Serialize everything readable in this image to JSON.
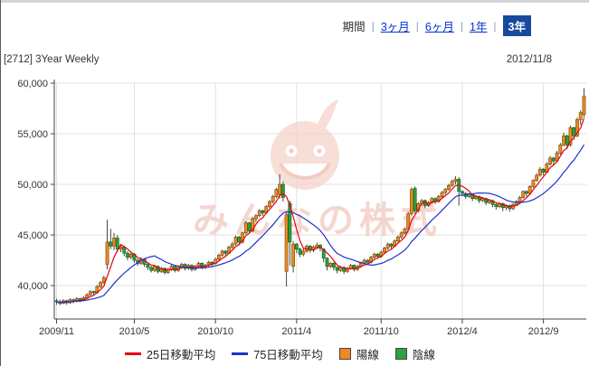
{
  "header": {
    "period_label": "期間",
    "separator": "|",
    "periods": [
      {
        "label": "3ヶ月",
        "selected": false
      },
      {
        "label": "6ヶ月",
        "selected": false
      },
      {
        "label": "1年",
        "selected": false
      },
      {
        "label": "3年",
        "selected": true
      }
    ]
  },
  "chart_header": {
    "title": "[2712] 3Year Weekly",
    "date": "2012/11/8"
  },
  "watermark": {
    "text": "みんなの株式"
  },
  "legend": {
    "items": [
      {
        "type": "line",
        "label": "25日移動平均",
        "color": "#e60012"
      },
      {
        "type": "line",
        "label": "75日移動平均",
        "color": "#1f31cc"
      },
      {
        "type": "square",
        "label": "陽線",
        "color": "#ef8a1d"
      },
      {
        "type": "square",
        "label": "陰線",
        "color": "#2aa23e"
      }
    ]
  },
  "colors": {
    "link": "#0033cc",
    "selected_period_bg": "#17499c",
    "up_candle": "#ef8a1d",
    "up_candle_border": "#6b4a0e",
    "down_candle": "#2aa23e",
    "down_candle_border": "#115c20",
    "ma25": "#e60012",
    "ma75": "#1f31cc",
    "grid": "#e0e0e0",
    "axis": "#444444",
    "watermark_pink": "#f3cdc3"
  },
  "chart_data": {
    "type": "candlestick",
    "title": "[2712] 3Year Weekly",
    "interval": "weekly",
    "ylim": [
      36700,
      60400
    ],
    "grid": true,
    "y_ticks": [
      {
        "value": 40000,
        "label": "40,000"
      },
      {
        "value": 45000,
        "label": "45,000"
      },
      {
        "value": 50000,
        "label": "50,000"
      },
      {
        "value": 55000,
        "label": "55,000"
      },
      {
        "value": 60000,
        "label": "60,000"
      }
    ],
    "x_ticks": [
      {
        "label": "2009/11",
        "index": 0
      },
      {
        "label": "2010/5",
        "index": 23
      },
      {
        "label": "2010/10",
        "index": 47
      },
      {
        "label": "2011/4",
        "index": 71
      },
      {
        "label": "2011/10",
        "index": 96
      },
      {
        "label": "2012/4",
        "index": 120
      },
      {
        "label": "2012/9",
        "index": 144
      }
    ],
    "ma": [
      {
        "name": "25日移動平均",
        "window_weeks": 5,
        "color": "#e60012"
      },
      {
        "name": "75日移動平均",
        "window_weeks": 15,
        "color": "#1f31cc"
      }
    ],
    "candles_ohlc": [
      [
        38500,
        38700,
        38100,
        38400
      ],
      [
        38400,
        38600,
        38050,
        38250
      ],
      [
        38250,
        38650,
        38150,
        38500
      ],
      [
        38500,
        38600,
        38100,
        38300
      ],
      [
        38300,
        38750,
        38200,
        38600
      ],
      [
        38600,
        38700,
        38250,
        38450
      ],
      [
        38450,
        38850,
        38350,
        38700
      ],
      [
        38700,
        38800,
        38350,
        38550
      ],
      [
        38550,
        38950,
        38450,
        38800
      ],
      [
        38800,
        39250,
        38700,
        39100
      ],
      [
        39100,
        39550,
        39000,
        39400
      ],
      [
        39400,
        39500,
        39050,
        39300
      ],
      [
        39300,
        40050,
        39200,
        39900
      ],
      [
        39900,
        40450,
        39750,
        40300
      ],
      [
        40300,
        40950,
        40150,
        40800
      ],
      [
        42100,
        46500,
        41600,
        44300
      ],
      [
        44300,
        45600,
        43600,
        43900
      ],
      [
        43900,
        45200,
        43500,
        44700
      ],
      [
        44700,
        45000,
        43300,
        43600
      ],
      [
        43600,
        44100,
        43300,
        43800
      ],
      [
        43800,
        43950,
        42900,
        43200
      ],
      [
        43200,
        43400,
        42500,
        42800
      ],
      [
        42800,
        43350,
        42600,
        43100
      ],
      [
        43100,
        43200,
        42250,
        42500
      ],
      [
        42500,
        42650,
        41950,
        42200
      ],
      [
        42200,
        42800,
        42050,
        42600
      ],
      [
        42600,
        42700,
        41850,
        42100
      ],
      [
        42100,
        42250,
        41550,
        41800
      ],
      [
        41800,
        41950,
        41300,
        41500
      ],
      [
        41500,
        42050,
        41350,
        41900
      ],
      [
        41900,
        42000,
        41200,
        41400
      ],
      [
        41400,
        41850,
        41250,
        41700
      ],
      [
        41700,
        41800,
        41100,
        41300
      ],
      [
        41300,
        41750,
        41150,
        41600
      ],
      [
        41600,
        42050,
        41450,
        41900
      ],
      [
        41900,
        42000,
        41300,
        41500
      ],
      [
        41500,
        41950,
        41350,
        41800
      ],
      [
        41800,
        42250,
        41650,
        42100
      ],
      [
        42100,
        42200,
        41500,
        41700
      ],
      [
        41700,
        42150,
        41550,
        42000
      ],
      [
        42000,
        42100,
        41400,
        41600
      ],
      [
        41600,
        42050,
        41450,
        41900
      ],
      [
        41900,
        42350,
        41750,
        42200
      ],
      [
        42200,
        42300,
        41600,
        41800
      ],
      [
        41800,
        42150,
        41650,
        42000
      ],
      [
        42000,
        42450,
        41850,
        42300
      ],
      [
        42300,
        42400,
        41900,
        42200
      ],
      [
        42200,
        42750,
        42100,
        42600
      ],
      [
        42600,
        43150,
        42450,
        43000
      ],
      [
        43000,
        43550,
        42850,
        43400
      ],
      [
        43400,
        43500,
        42950,
        43200
      ],
      [
        43200,
        43950,
        43100,
        43800
      ],
      [
        43800,
        44300,
        43600,
        44100
      ],
      [
        44100,
        44950,
        43950,
        44800
      ],
      [
        44800,
        44900,
        44050,
        44300
      ],
      [
        44300,
        45350,
        44150,
        45200
      ],
      [
        45200,
        46350,
        45050,
        46200
      ],
      [
        46200,
        46300,
        45150,
        45400
      ],
      [
        45400,
        46750,
        45250,
        46600
      ],
      [
        46600,
        47050,
        46300,
        46900
      ],
      [
        46900,
        47550,
        46750,
        47400
      ],
      [
        47400,
        47500,
        46900,
        47200
      ],
      [
        47200,
        47950,
        47050,
        47800
      ],
      [
        47800,
        48450,
        47650,
        48300
      ],
      [
        48300,
        48950,
        48100,
        48800
      ],
      [
        48800,
        49650,
        48650,
        49500
      ],
      [
        49000,
        51000,
        48600,
        50000
      ],
      [
        50000,
        50300,
        48300,
        48700
      ],
      [
        41400,
        47200,
        39900,
        47000
      ],
      [
        48100,
        48400,
        42000,
        44300
      ],
      [
        41900,
        44400,
        41300,
        44100
      ],
      [
        44100,
        44200,
        43200,
        43600
      ],
      [
        43600,
        43750,
        42800,
        43100
      ],
      [
        43100,
        43650,
        42900,
        43400
      ],
      [
        43400,
        44050,
        43250,
        43900
      ],
      [
        43900,
        44000,
        43250,
        43500
      ],
      [
        43500,
        43950,
        43300,
        43800
      ],
      [
        43800,
        44250,
        43600,
        44000
      ],
      [
        44000,
        44100,
        43400,
        43700
      ],
      [
        43600,
        43700,
        42300,
        42700
      ],
      [
        42700,
        42800,
        41500,
        41900
      ],
      [
        41900,
        42350,
        41700,
        42200
      ],
      [
        42200,
        42300,
        41500,
        41800
      ],
      [
        41800,
        41900,
        41200,
        41500
      ],
      [
        41500,
        41950,
        41350,
        41800
      ],
      [
        41800,
        41900,
        41150,
        41400
      ],
      [
        41400,
        41850,
        41250,
        41700
      ],
      [
        41700,
        42150,
        41550,
        42000
      ],
      [
        42000,
        42100,
        41400,
        41600
      ],
      [
        41600,
        42050,
        41450,
        41900
      ],
      [
        41900,
        42350,
        41750,
        42200
      ],
      [
        42200,
        42650,
        42050,
        42500
      ],
      [
        42500,
        42600,
        42050,
        42300
      ],
      [
        42300,
        42950,
        42200,
        42800
      ],
      [
        42800,
        43250,
        42650,
        43100
      ],
      [
        43100,
        43200,
        42650,
        42900
      ],
      [
        42900,
        43450,
        42750,
        43300
      ],
      [
        43300,
        43850,
        43150,
        43700
      ],
      [
        43700,
        44250,
        43550,
        44100
      ],
      [
        44100,
        44200,
        43650,
        43900
      ],
      [
        43900,
        44550,
        43800,
        44400
      ],
      [
        44400,
        44950,
        44250,
        44800
      ],
      [
        44800,
        45350,
        44650,
        45200
      ],
      [
        45200,
        45750,
        45050,
        45600
      ],
      [
        45600,
        47300,
        45400,
        47100
      ],
      [
        47100,
        49700,
        46900,
        49500
      ],
      [
        49600,
        49800,
        47100,
        47400
      ],
      [
        47400,
        48250,
        47200,
        48100
      ],
      [
        48100,
        48550,
        47900,
        48400
      ],
      [
        48400,
        48500,
        47650,
        47900
      ],
      [
        47900,
        48350,
        47750,
        48200
      ],
      [
        48200,
        48750,
        48050,
        48600
      ],
      [
        48600,
        48700,
        48050,
        48300
      ],
      [
        48300,
        48950,
        48200,
        48800
      ],
      [
        48800,
        49350,
        48650,
        49200
      ],
      [
        49200,
        49650,
        49000,
        49500
      ],
      [
        49500,
        50050,
        49350,
        49900
      ],
      [
        49900,
        50450,
        49750,
        50300
      ],
      [
        50300,
        50800,
        50000,
        50500
      ],
      [
        50500,
        50700,
        47900,
        49300
      ],
      [
        49300,
        49400,
        48850,
        49100
      ],
      [
        49100,
        49250,
        48550,
        48800
      ],
      [
        48800,
        49150,
        48650,
        49000
      ],
      [
        49000,
        49100,
        48350,
        48600
      ],
      [
        48600,
        48950,
        48450,
        48800
      ],
      [
        48800,
        48900,
        48150,
        48400
      ],
      [
        48400,
        48750,
        48250,
        48600
      ],
      [
        48600,
        48700,
        47950,
        48200
      ],
      [
        48200,
        48550,
        48050,
        48400
      ],
      [
        48400,
        48500,
        47750,
        48000
      ],
      [
        48000,
        48150,
        47500,
        47800
      ],
      [
        47800,
        48250,
        47650,
        48100
      ],
      [
        48100,
        48200,
        47350,
        47700
      ],
      [
        47700,
        48050,
        47450,
        47900
      ],
      [
        47900,
        48000,
        47300,
        47600
      ],
      [
        47600,
        48150,
        47450,
        48000
      ],
      [
        48000,
        48450,
        47850,
        48300
      ],
      [
        48300,
        48850,
        48150,
        48700
      ],
      [
        48700,
        49400,
        48600,
        49300
      ],
      [
        49300,
        49400,
        48800,
        49100
      ],
      [
        49100,
        49900,
        49000,
        49800
      ],
      [
        49800,
        50500,
        49650,
        50400
      ],
      [
        50400,
        51100,
        50250,
        50900
      ],
      [
        50900,
        51700,
        50750,
        51500
      ],
      [
        51500,
        51600,
        50900,
        51200
      ],
      [
        51200,
        52200,
        51100,
        52000
      ],
      [
        52000,
        52800,
        51850,
        52600
      ],
      [
        52600,
        52700,
        51900,
        52300
      ],
      [
        52300,
        53300,
        52200,
        53100
      ],
      [
        53100,
        54100,
        52950,
        53900
      ],
      [
        53900,
        55100,
        53750,
        54800
      ],
      [
        54800,
        54900,
        53500,
        53900
      ],
      [
        53900,
        55800,
        53750,
        55600
      ],
      [
        55600,
        55700,
        54400,
        54800
      ],
      [
        54800,
        56600,
        54650,
        56400
      ],
      [
        56400,
        57300,
        55900,
        57100
      ],
      [
        56900,
        59500,
        56600,
        58700
      ]
    ]
  }
}
